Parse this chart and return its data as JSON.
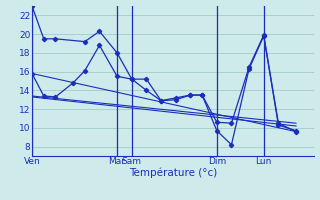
{
  "background_color": "#ceeaea",
  "grid_color": "#aacece",
  "line_color": "#1a2ebb",
  "xlabel": "Température (°c)",
  "tick_color": "#1a2ebb",
  "ylim": [
    7,
    23
  ],
  "yticks": [
    8,
    10,
    12,
    14,
    16,
    18,
    20,
    22
  ],
  "xlim": [
    0,
    96
  ],
  "series1": {
    "x": [
      0,
      4,
      8,
      18,
      23,
      29,
      34,
      39,
      44,
      49,
      54,
      58,
      63,
      68,
      74,
      79,
      84,
      90
    ],
    "y": [
      23.0,
      19.5,
      19.5,
      19.2,
      20.3,
      18.0,
      15.2,
      15.2,
      12.9,
      13.0,
      13.5,
      13.5,
      9.7,
      8.2,
      16.3,
      19.8,
      10.3,
      9.7
    ]
  },
  "series2": {
    "x": [
      0,
      4,
      8,
      14,
      18,
      23,
      29,
      34,
      39,
      44,
      49,
      54,
      58,
      63,
      68,
      74,
      79,
      84,
      90
    ],
    "y": [
      15.8,
      13.4,
      13.3,
      14.8,
      16.1,
      18.8,
      15.5,
      15.2,
      14.0,
      12.9,
      13.2,
      13.5,
      13.5,
      10.6,
      10.5,
      16.5,
      19.9,
      10.5,
      9.6
    ]
  },
  "trend_lines": [
    {
      "x": [
        0,
        90
      ],
      "y": [
        15.8,
        9.6
      ]
    },
    {
      "x": [
        0,
        90
      ],
      "y": [
        13.4,
        10.5
      ]
    },
    {
      "x": [
        0,
        90
      ],
      "y": [
        13.3,
        10.2
      ]
    }
  ],
  "vlines_x": [
    0,
    29,
    34,
    63,
    79
  ],
  "xtick_positions": [
    0,
    29,
    34,
    63,
    79
  ],
  "xtick_labels": [
    "Ven",
    "Mar",
    "Sam",
    "Dim",
    "Lun"
  ]
}
